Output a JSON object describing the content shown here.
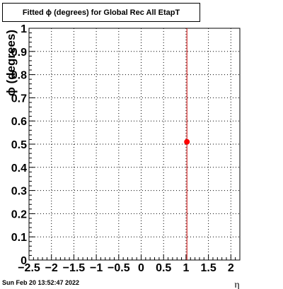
{
  "title": "Fitted ϕ (degrees) for Global Rec All EtapT",
  "timestamp": "Sun Feb 20 13:52:47 2022",
  "colors": {
    "marker": "#ff0000",
    "vline": "#cc0000",
    "grid": "#000000"
  },
  "chart_data": {
    "type": "scatter",
    "title": "Fitted ϕ (degrees) for Global Rec All EtapT",
    "xlabel": "η",
    "ylabel": "ϕ (degrees)",
    "xlim": [
      -2.5,
      2.2
    ],
    "ylim": [
      0,
      1
    ],
    "xticks": [
      -2.5,
      -2,
      -1.5,
      -1,
      -0.5,
      0,
      0.5,
      1,
      1.5,
      2
    ],
    "xtick_labels": [
      "−2.5",
      "−2",
      "−1.5",
      "−1",
      "−0.5",
      "0",
      "0.5",
      "1",
      "1.5",
      "2"
    ],
    "yticks": [
      0,
      0.1,
      0.2,
      0.3,
      0.4,
      0.5,
      0.6,
      0.7,
      0.8,
      0.9,
      1
    ],
    "ytick_labels": [
      "0",
      "0.1",
      "0.2",
      "0.3",
      "0.4",
      "0.5",
      "0.6",
      "0.7",
      "0.8",
      "0.9",
      "1"
    ],
    "grid": true,
    "vline_x": 1.02,
    "points": [
      {
        "x": 1.02,
        "y": 0.51
      }
    ]
  }
}
